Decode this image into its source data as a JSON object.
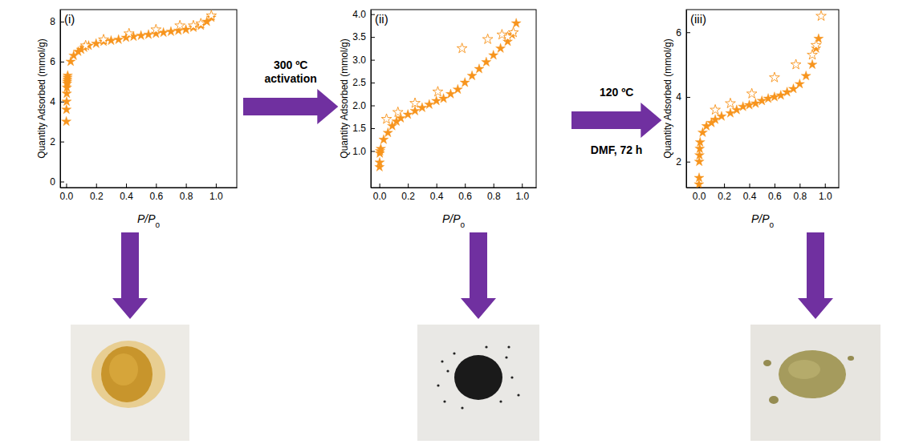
{
  "chart_data": [
    {
      "type": "scatter",
      "title": "(i)",
      "x_label": "P/Po",
      "y_label": "Quantity Adsorbed (mmol/g)",
      "xlim": [
        -0.04,
        1.14
      ],
      "ylim": [
        -0.3,
        8.6
      ],
      "xticks": [
        {
          "value": 0,
          "label": "0.0"
        },
        {
          "value": 0.2,
          "label": "0.2"
        },
        {
          "value": 0.4,
          "label": "0.4"
        },
        {
          "value": 0.6,
          "label": "0.6"
        },
        {
          "value": 0.8,
          "label": "0.8"
        },
        {
          "value": 1,
          "label": "1.0"
        }
      ],
      "yticks": [
        0,
        2,
        4,
        6,
        8
      ],
      "series": [
        {
          "color": "#f7941d",
          "marker": "star",
          "x": [
            0.001,
            0.002,
            0.003,
            0.004,
            0.005,
            0.006,
            0.007,
            0.008,
            0.009,
            0.01,
            0.03,
            0.05,
            0.08,
            0.1,
            0.12,
            0.15,
            0.2,
            0.25,
            0.3,
            0.35,
            0.4,
            0.45,
            0.5,
            0.55,
            0.6,
            0.65,
            0.7,
            0.75,
            0.8,
            0.85,
            0.9,
            0.94,
            0.97
          ],
          "values": [
            3.0,
            3.6,
            4.0,
            4.4,
            4.7,
            4.9,
            5.0,
            5.1,
            5.2,
            5.3,
            6.0,
            6.3,
            6.5,
            6.6,
            6.7,
            6.8,
            6.9,
            7.0,
            7.05,
            7.1,
            7.2,
            7.25,
            7.3,
            7.35,
            7.4,
            7.45,
            7.5,
            7.55,
            7.6,
            7.7,
            7.8,
            8.0,
            8.2
          ]
        },
        {
          "color": "#f7941d",
          "marker": "star-open",
          "x": [
            0.97,
            0.9,
            0.85,
            0.76,
            0.6,
            0.42,
            0.25,
            0.13
          ],
          "values": [
            8.3,
            7.9,
            7.8,
            7.8,
            7.6,
            7.4,
            7.1,
            6.8
          ]
        }
      ]
    },
    {
      "type": "scatter",
      "title": "(ii)",
      "x_label": "P/Po",
      "y_label": "Quantity Adsorbed (mmol/g)",
      "xlim": [
        -0.06,
        1.1
      ],
      "ylim": [
        0.2,
        4.1
      ],
      "xticks": [
        {
          "value": 0,
          "label": "0.0"
        },
        {
          "value": 0.2,
          "label": "0.2"
        },
        {
          "value": 0.4,
          "label": "0.4"
        },
        {
          "value": 0.6,
          "label": "0.6"
        },
        {
          "value": 0.8,
          "label": "0.8"
        },
        {
          "value": 1,
          "label": "1.0"
        }
      ],
      "yticks": [
        {
          "value": 1,
          "label": "1.0"
        },
        {
          "value": 1.5,
          "label": "1.5"
        },
        {
          "value": 2,
          "label": "2.0"
        },
        {
          "value": 2.5,
          "label": "2.5"
        },
        {
          "value": 3,
          "label": "3.0"
        },
        {
          "value": 3.5,
          "label": "3.5"
        },
        {
          "value": 4,
          "label": "4.0"
        }
      ],
      "series": [
        {
          "color": "#f7941d",
          "marker": "star",
          "x": [
            0.001,
            0.002,
            0.003,
            0.005,
            0.01,
            0.03,
            0.06,
            0.09,
            0.12,
            0.15,
            0.2,
            0.25,
            0.3,
            0.35,
            0.4,
            0.45,
            0.5,
            0.55,
            0.6,
            0.65,
            0.7,
            0.75,
            0.8,
            0.85,
            0.9,
            0.93,
            0.96
          ],
          "values": [
            0.65,
            0.75,
            0.95,
            1.0,
            1.05,
            1.25,
            1.4,
            1.55,
            1.65,
            1.72,
            1.8,
            1.88,
            1.95,
            2.02,
            2.1,
            2.15,
            2.25,
            2.35,
            2.5,
            2.65,
            2.8,
            2.95,
            3.1,
            3.25,
            3.4,
            3.55,
            3.8
          ]
        },
        {
          "color": "#f7941d",
          "marker": "star-open",
          "x": [
            0.94,
            0.9,
            0.86,
            0.76,
            0.58,
            0.41,
            0.25,
            0.13,
            0.05
          ],
          "values": [
            3.6,
            3.5,
            3.55,
            3.45,
            3.25,
            2.3,
            2.05,
            1.85,
            1.7
          ]
        }
      ]
    },
    {
      "type": "scatter",
      "title": "(iii)",
      "x_label": "P/Po",
      "y_label": "Quantity Adsorbed (mmol/g)",
      "xlim": [
        -0.1,
        1.11
      ],
      "ylim": [
        1.2,
        6.7
      ],
      "xticks": [
        {
          "value": 0,
          "label": "0.0"
        },
        {
          "value": 0.2,
          "label": "0.2"
        },
        {
          "value": 0.4,
          "label": "0.4"
        },
        {
          "value": 0.6,
          "label": "0.6"
        },
        {
          "value": 0.8,
          "label": "0.8"
        },
        {
          "value": 1,
          "label": "1.0"
        }
      ],
      "yticks": [
        2,
        4,
        6
      ],
      "series": [
        {
          "color": "#f7941d",
          "marker": "star",
          "x": [
            0.001,
            0.002,
            0.003,
            0.005,
            0.007,
            0.01,
            0.03,
            0.06,
            0.1,
            0.13,
            0.18,
            0.25,
            0.3,
            0.35,
            0.4,
            0.45,
            0.5,
            0.55,
            0.6,
            0.65,
            0.7,
            0.75,
            0.8,
            0.85,
            0.9,
            0.93,
            0.95
          ],
          "values": [
            1.3,
            1.5,
            2.0,
            2.2,
            2.4,
            2.6,
            2.9,
            3.1,
            3.2,
            3.3,
            3.4,
            3.5,
            3.6,
            3.7,
            3.75,
            3.8,
            3.88,
            3.95,
            4.0,
            4.05,
            4.15,
            4.25,
            4.4,
            4.65,
            5.0,
            5.5,
            5.8
          ]
        },
        {
          "color": "#f7941d",
          "marker": "star-open",
          "x": [
            0.97,
            0.93,
            0.9,
            0.77,
            0.6,
            0.42,
            0.25,
            0.13
          ],
          "values": [
            6.5,
            5.6,
            5.3,
            5.0,
            4.6,
            4.1,
            3.8,
            3.6
          ]
        }
      ]
    }
  ],
  "arrows": [
    {
      "above": [
        "300 ºC",
        "activation"
      ]
    },
    {
      "above": [
        "120 ºC"
      ],
      "below": [
        "DMF, 72 h"
      ]
    }
  ]
}
